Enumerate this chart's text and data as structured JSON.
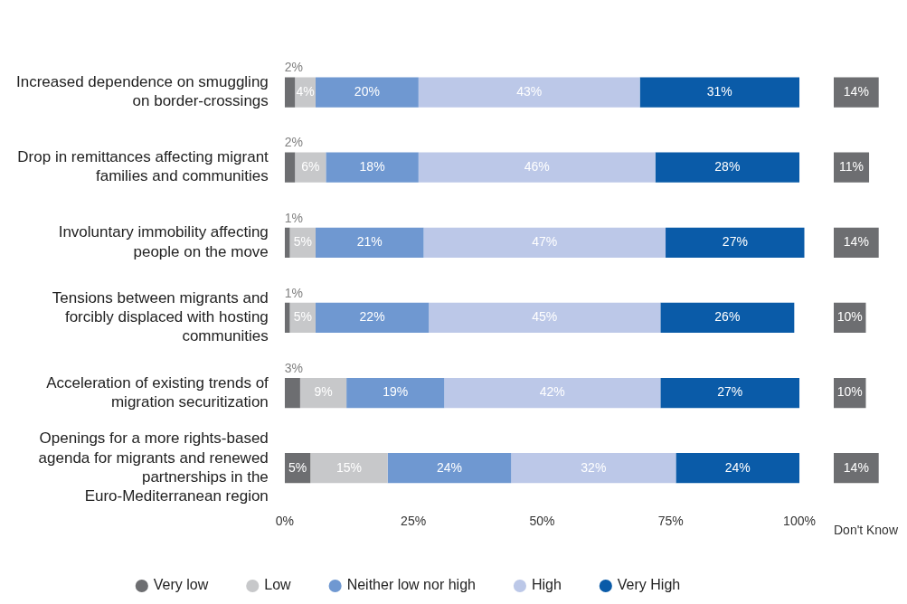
{
  "chart_data": [
    {
      "type": "bar",
      "orientation": "horizontal",
      "stacked": true,
      "categories": [
        "Increased dependence on smuggling on border-crossings",
        "Drop in remittances affecting migrant families and communities",
        "Involuntary immobility affecting people on the move",
        "Tensions between migrants and forcibly displaced with hosting communities",
        "Acceleration of existing trends of migration securitization",
        "Openings for a more rights-based agenda for migrants and renewed partnerships in the Euro-Mediterranean region"
      ],
      "series": [
        {
          "name": "Very low",
          "color": "#6d6e71",
          "values": [
            2,
            2,
            1,
            1,
            3,
            5
          ],
          "value_labels": [
            "2%",
            "2%",
            "1%",
            "1%",
            "3%",
            "5%"
          ]
        },
        {
          "name": "Low",
          "color": "#c7c8ca",
          "values": [
            4,
            6,
            5,
            5,
            9,
            15
          ],
          "value_labels": [
            "4%",
            "6%",
            "5%",
            "5%",
            "9%",
            "15%"
          ]
        },
        {
          "name": "Neither low nor high",
          "color": "#6f98d1",
          "values": [
            20,
            18,
            21,
            22,
            19,
            24
          ],
          "value_labels": [
            "20%",
            "18%",
            "21%",
            "22%",
            "19%",
            "24%"
          ]
        },
        {
          "name": "High",
          "color": "#bcc8e8",
          "values": [
            43,
            46,
            47,
            45,
            42,
            32
          ],
          "value_labels": [
            "43%",
            "46%",
            "47%",
            "45%",
            "42%",
            "32%"
          ]
        },
        {
          "name": "Very High",
          "color": "#0a5ba8",
          "values": [
            31,
            28,
            27,
            26,
            27,
            24
          ],
          "value_labels": [
            "31%",
            "28%",
            "27%",
            "26%",
            "27%",
            "24%"
          ]
        }
      ],
      "xlim": [
        0,
        101
      ],
      "xticks": [
        {
          "value": 0,
          "label": "0%"
        },
        {
          "value": 25,
          "label": "25%"
        },
        {
          "value": 50,
          "label": "50%"
        },
        {
          "value": 75,
          "label": "75%"
        },
        {
          "value": 100,
          "label": "100%"
        }
      ],
      "grid": false,
      "legend": "bottom"
    },
    {
      "type": "bar",
      "orientation": "horizontal",
      "xlabel": "Don't Know",
      "categories": [
        null,
        null,
        null,
        null,
        null,
        null
      ],
      "series": [
        {
          "color": "#6d6e71",
          "values": [
            14,
            11,
            14,
            10,
            10,
            14
          ],
          "value_labels": [
            "14%",
            "11%",
            "14%",
            "10%",
            "10%",
            "14%"
          ]
        }
      ],
      "grid": false
    }
  ]
}
